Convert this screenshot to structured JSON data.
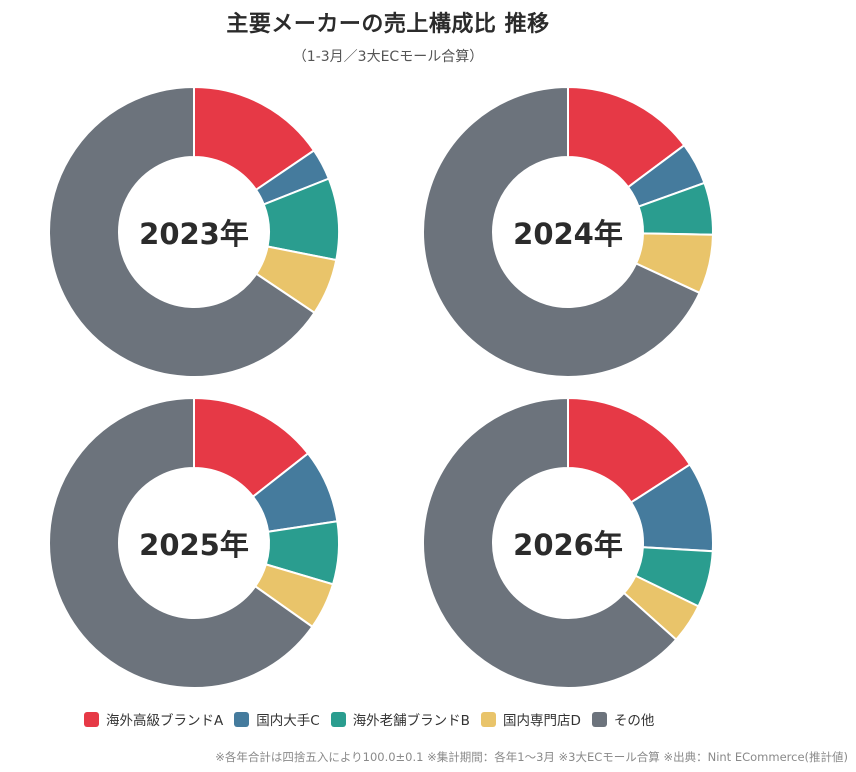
{
  "header": {
    "title": "主要メーカーの売上構成比 推移",
    "subtitle": "（1-3月／3大ECモール合算）"
  },
  "legend": [
    {
      "label": "海外高級ブランドA",
      "color": "#e63946"
    },
    {
      "label": "国内大手C",
      "color": "#457b9d"
    },
    {
      "label": "海外老舗ブランドB",
      "color": "#2a9d8f"
    },
    {
      "label": "国内専門店D",
      "color": "#e9c46a"
    },
    {
      "label": "その他",
      "color": "#6c737c"
    }
  ],
  "footnote": "※各年合計は四捨五入により100.0±0.1  ※集計期間：各年1〜3月  ※3大ECモール合算  ※出典：Nint ECommerce(推計値)",
  "chart_data": {
    "type": "pie",
    "variant": "donut",
    "title": "主要メーカーの売上構成比 推移",
    "subtitle": "（1-3月／3大ECモール合算）",
    "categories": [
      "海外高級ブランドA",
      "国内大手C",
      "海外老舗ブランドB",
      "国内専門店D",
      "その他"
    ],
    "colors": [
      "#e63946",
      "#457b9d",
      "#2a9d8f",
      "#e9c46a",
      "#6c737c"
    ],
    "legend_position": "bottom",
    "unit": "%",
    "charts": [
      {
        "label": "2023年",
        "values": [
          15.5,
          3.5,
          9.1,
          6.3,
          65.6
        ]
      },
      {
        "label": "2024年",
        "values": [
          14.8,
          4.7,
          5.8,
          6.6,
          68.1
        ]
      },
      {
        "label": "2025年",
        "values": [
          14.4,
          8.2,
          7.0,
          5.2,
          65.2
        ]
      },
      {
        "label": "2026年",
        "values": [
          15.9,
          10.0,
          6.3,
          4.4,
          63.4
        ]
      }
    ]
  }
}
